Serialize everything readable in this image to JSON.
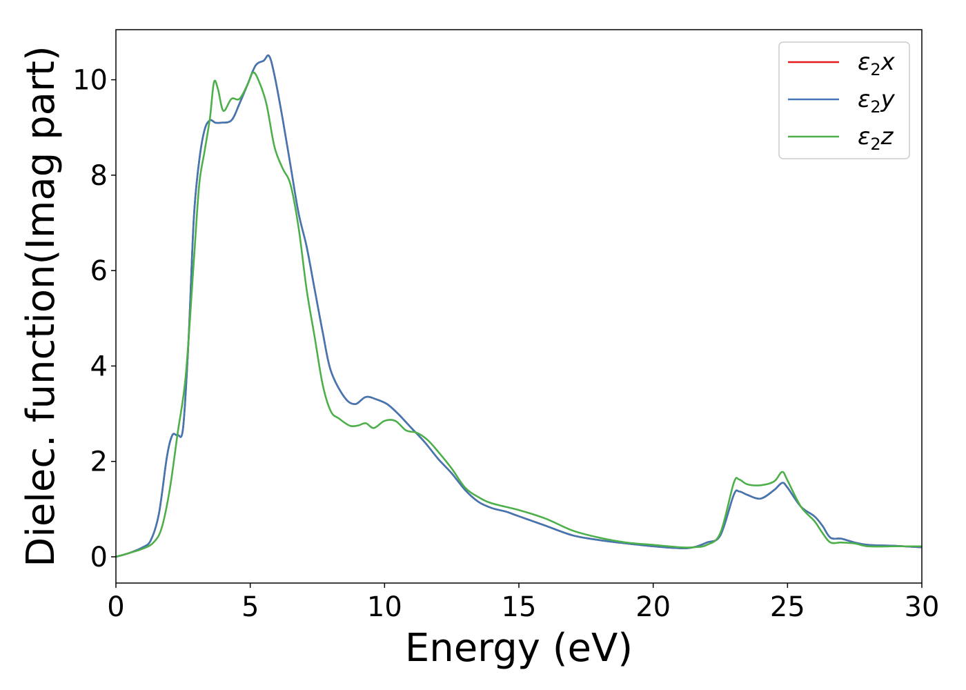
{
  "chart_data": {
    "type": "line",
    "xlabel": "Energy (eV)",
    "ylabel": "Dielec. function(Imag part)",
    "xlim": [
      0,
      30
    ],
    "ylim": [
      -0.55,
      11.05
    ],
    "xticks": [
      0,
      5,
      10,
      15,
      20,
      25,
      30
    ],
    "yticks": [
      0,
      2,
      4,
      6,
      8,
      10
    ],
    "grid": false,
    "legend_position": "top-right",
    "series": [
      {
        "name": "ε2x",
        "legend_main": "ε",
        "legend_sub": "2",
        "legend_suffix": "x",
        "color": "#e41a1c",
        "x": [
          0,
          0.5,
          1,
          1.3,
          1.6,
          1.9,
          2.1,
          2.3,
          2.5,
          2.7,
          2.9,
          3.1,
          3.3,
          3.5,
          3.7,
          3.9,
          4.3,
          4.6,
          4.9,
          5.2,
          5.5,
          5.7,
          5.9,
          6.2,
          6.5,
          6.8,
          7.1,
          7.4,
          7.7,
          8.0,
          8.5,
          8.9,
          9.3,
          9.7,
          10.1,
          10.5,
          11,
          11.5,
          12,
          12.5,
          13,
          13.5,
          14,
          14.5,
          15,
          16,
          17,
          18,
          19,
          20,
          21,
          21.5,
          22,
          22.5,
          23,
          23.2,
          23.5,
          24,
          24.5,
          24.8,
          25,
          25.5,
          26,
          26.3,
          26.6,
          27,
          27.5,
          28,
          29,
          30
        ],
        "y": [
          0,
          0.08,
          0.2,
          0.35,
          0.9,
          2.1,
          2.55,
          2.55,
          2.7,
          4.5,
          7.1,
          8.3,
          8.95,
          9.15,
          9.1,
          9.1,
          9.15,
          9.5,
          9.9,
          10.3,
          10.4,
          10.5,
          10.1,
          9.2,
          8.2,
          7.2,
          6.5,
          5.6,
          4.7,
          3.9,
          3.35,
          3.2,
          3.35,
          3.3,
          3.2,
          3.0,
          2.7,
          2.4,
          2.05,
          1.75,
          1.4,
          1.15,
          1.02,
          0.95,
          0.85,
          0.65,
          0.45,
          0.35,
          0.28,
          0.22,
          0.18,
          0.2,
          0.3,
          0.45,
          1.3,
          1.37,
          1.3,
          1.22,
          1.4,
          1.55,
          1.45,
          1.05,
          0.85,
          0.65,
          0.4,
          0.38,
          0.3,
          0.25,
          0.23,
          0.2
        ]
      },
      {
        "name": "ε2y",
        "legend_main": "ε",
        "legend_sub": "2",
        "legend_suffix": "y",
        "color": "#4178b4",
        "x": [
          0,
          0.5,
          1,
          1.3,
          1.6,
          1.9,
          2.1,
          2.3,
          2.5,
          2.7,
          2.9,
          3.1,
          3.3,
          3.5,
          3.7,
          3.9,
          4.3,
          4.6,
          4.9,
          5.2,
          5.5,
          5.7,
          5.9,
          6.2,
          6.5,
          6.8,
          7.1,
          7.4,
          7.7,
          8.0,
          8.5,
          8.9,
          9.3,
          9.7,
          10.1,
          10.5,
          11,
          11.5,
          12,
          12.5,
          13,
          13.5,
          14,
          14.5,
          15,
          16,
          17,
          18,
          19,
          20,
          21,
          21.5,
          22,
          22.5,
          23,
          23.2,
          23.5,
          24,
          24.5,
          24.8,
          25,
          25.5,
          26,
          26.3,
          26.6,
          27,
          27.5,
          28,
          29,
          30
        ],
        "y": [
          0,
          0.08,
          0.2,
          0.35,
          0.9,
          2.1,
          2.55,
          2.55,
          2.7,
          4.5,
          7.1,
          8.3,
          8.95,
          9.15,
          9.1,
          9.1,
          9.15,
          9.5,
          9.9,
          10.3,
          10.4,
          10.5,
          10.1,
          9.2,
          8.2,
          7.2,
          6.5,
          5.6,
          4.7,
          3.9,
          3.35,
          3.2,
          3.35,
          3.3,
          3.2,
          3.0,
          2.7,
          2.4,
          2.05,
          1.75,
          1.4,
          1.15,
          1.02,
          0.95,
          0.85,
          0.65,
          0.45,
          0.35,
          0.28,
          0.22,
          0.18,
          0.2,
          0.3,
          0.45,
          1.3,
          1.37,
          1.3,
          1.22,
          1.4,
          1.55,
          1.45,
          1.05,
          0.85,
          0.65,
          0.4,
          0.38,
          0.3,
          0.25,
          0.23,
          0.2
        ]
      },
      {
        "name": "ε2z",
        "legend_main": "ε",
        "legend_sub": "2",
        "legend_suffix": "z",
        "color": "#4daf4a",
        "x": [
          0,
          0.5,
          1,
          1.4,
          1.7,
          2.0,
          2.3,
          2.6,
          2.9,
          3.1,
          3.3,
          3.5,
          3.65,
          3.8,
          4.0,
          4.3,
          4.6,
          4.9,
          5.1,
          5.3,
          5.6,
          5.9,
          6.2,
          6.5,
          6.8,
          7.1,
          7.4,
          7.7,
          8.0,
          8.3,
          8.7,
          9.0,
          9.3,
          9.6,
          10,
          10.4,
          10.8,
          11.2,
          11.6,
          12,
          12.5,
          13,
          13.5,
          14,
          15,
          16,
          17,
          18,
          19,
          20,
          21,
          21.5,
          22,
          22.5,
          23,
          23.2,
          23.5,
          24,
          24.5,
          24.8,
          25,
          25.5,
          26,
          26.3,
          26.6,
          27,
          27.5,
          28,
          29,
          30
        ],
        "y": [
          0,
          0.08,
          0.17,
          0.3,
          0.6,
          1.4,
          2.6,
          3.8,
          6.2,
          7.8,
          8.5,
          9.2,
          9.95,
          9.8,
          9.35,
          9.6,
          9.6,
          9.9,
          10.15,
          10.0,
          9.5,
          8.6,
          8.15,
          7.8,
          6.9,
          5.6,
          4.6,
          3.6,
          3.05,
          2.9,
          2.75,
          2.75,
          2.8,
          2.7,
          2.85,
          2.85,
          2.65,
          2.6,
          2.45,
          2.2,
          1.85,
          1.45,
          1.25,
          1.12,
          0.98,
          0.8,
          0.55,
          0.4,
          0.3,
          0.25,
          0.2,
          0.2,
          0.25,
          0.5,
          1.55,
          1.62,
          1.52,
          1.5,
          1.58,
          1.78,
          1.6,
          1.05,
          0.75,
          0.5,
          0.3,
          0.3,
          0.28,
          0.22,
          0.22,
          0.22
        ]
      }
    ]
  }
}
